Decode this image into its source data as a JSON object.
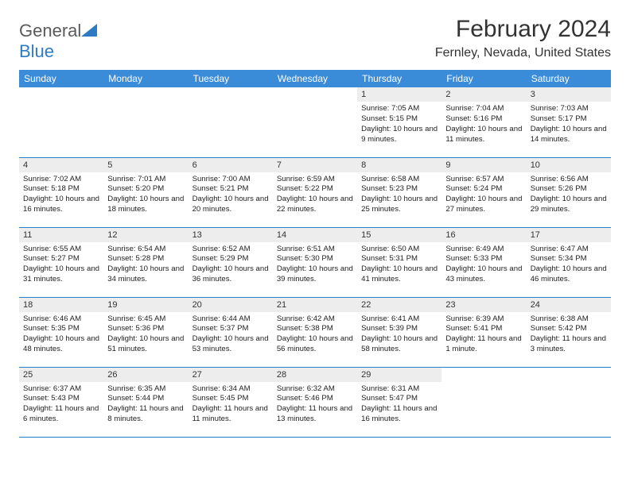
{
  "logo": {
    "text_general": "General",
    "text_blue": "Blue"
  },
  "header": {
    "month_title": "February 2024",
    "location": "Fernley, Nevada, United States"
  },
  "colors": {
    "header_bg": "#3a8bd8",
    "border": "#2c7bc4",
    "daynum_bg": "#ededed",
    "text": "#222222"
  },
  "weekdays": [
    "Sunday",
    "Monday",
    "Tuesday",
    "Wednesday",
    "Thursday",
    "Friday",
    "Saturday"
  ],
  "days": [
    {
      "num": "1",
      "sunrise": "7:05 AM",
      "sunset": "5:15 PM",
      "daylight": "10 hours and 9 minutes."
    },
    {
      "num": "2",
      "sunrise": "7:04 AM",
      "sunset": "5:16 PM",
      "daylight": "10 hours and 11 minutes."
    },
    {
      "num": "3",
      "sunrise": "7:03 AM",
      "sunset": "5:17 PM",
      "daylight": "10 hours and 14 minutes."
    },
    {
      "num": "4",
      "sunrise": "7:02 AM",
      "sunset": "5:18 PM",
      "daylight": "10 hours and 16 minutes."
    },
    {
      "num": "5",
      "sunrise": "7:01 AM",
      "sunset": "5:20 PM",
      "daylight": "10 hours and 18 minutes."
    },
    {
      "num": "6",
      "sunrise": "7:00 AM",
      "sunset": "5:21 PM",
      "daylight": "10 hours and 20 minutes."
    },
    {
      "num": "7",
      "sunrise": "6:59 AM",
      "sunset": "5:22 PM",
      "daylight": "10 hours and 22 minutes."
    },
    {
      "num": "8",
      "sunrise": "6:58 AM",
      "sunset": "5:23 PM",
      "daylight": "10 hours and 25 minutes."
    },
    {
      "num": "9",
      "sunrise": "6:57 AM",
      "sunset": "5:24 PM",
      "daylight": "10 hours and 27 minutes."
    },
    {
      "num": "10",
      "sunrise": "6:56 AM",
      "sunset": "5:26 PM",
      "daylight": "10 hours and 29 minutes."
    },
    {
      "num": "11",
      "sunrise": "6:55 AM",
      "sunset": "5:27 PM",
      "daylight": "10 hours and 31 minutes."
    },
    {
      "num": "12",
      "sunrise": "6:54 AM",
      "sunset": "5:28 PM",
      "daylight": "10 hours and 34 minutes."
    },
    {
      "num": "13",
      "sunrise": "6:52 AM",
      "sunset": "5:29 PM",
      "daylight": "10 hours and 36 minutes."
    },
    {
      "num": "14",
      "sunrise": "6:51 AM",
      "sunset": "5:30 PM",
      "daylight": "10 hours and 39 minutes."
    },
    {
      "num": "15",
      "sunrise": "6:50 AM",
      "sunset": "5:31 PM",
      "daylight": "10 hours and 41 minutes."
    },
    {
      "num": "16",
      "sunrise": "6:49 AM",
      "sunset": "5:33 PM",
      "daylight": "10 hours and 43 minutes."
    },
    {
      "num": "17",
      "sunrise": "6:47 AM",
      "sunset": "5:34 PM",
      "daylight": "10 hours and 46 minutes."
    },
    {
      "num": "18",
      "sunrise": "6:46 AM",
      "sunset": "5:35 PM",
      "daylight": "10 hours and 48 minutes."
    },
    {
      "num": "19",
      "sunrise": "6:45 AM",
      "sunset": "5:36 PM",
      "daylight": "10 hours and 51 minutes."
    },
    {
      "num": "20",
      "sunrise": "6:44 AM",
      "sunset": "5:37 PM",
      "daylight": "10 hours and 53 minutes."
    },
    {
      "num": "21",
      "sunrise": "6:42 AM",
      "sunset": "5:38 PM",
      "daylight": "10 hours and 56 minutes."
    },
    {
      "num": "22",
      "sunrise": "6:41 AM",
      "sunset": "5:39 PM",
      "daylight": "10 hours and 58 minutes."
    },
    {
      "num": "23",
      "sunrise": "6:39 AM",
      "sunset": "5:41 PM",
      "daylight": "11 hours and 1 minute."
    },
    {
      "num": "24",
      "sunrise": "6:38 AM",
      "sunset": "5:42 PM",
      "daylight": "11 hours and 3 minutes."
    },
    {
      "num": "25",
      "sunrise": "6:37 AM",
      "sunset": "5:43 PM",
      "daylight": "11 hours and 6 minutes."
    },
    {
      "num": "26",
      "sunrise": "6:35 AM",
      "sunset": "5:44 PM",
      "daylight": "11 hours and 8 minutes."
    },
    {
      "num": "27",
      "sunrise": "6:34 AM",
      "sunset": "5:45 PM",
      "daylight": "11 hours and 11 minutes."
    },
    {
      "num": "28",
      "sunrise": "6:32 AM",
      "sunset": "5:46 PM",
      "daylight": "11 hours and 13 minutes."
    },
    {
      "num": "29",
      "sunrise": "6:31 AM",
      "sunset": "5:47 PM",
      "daylight": "11 hours and 16 minutes."
    }
  ],
  "labels": {
    "sunrise": "Sunrise: ",
    "sunset": "Sunset: ",
    "daylight": "Daylight: "
  },
  "grid": {
    "first_weekday_index": 4,
    "rows": 5,
    "cols": 7
  }
}
